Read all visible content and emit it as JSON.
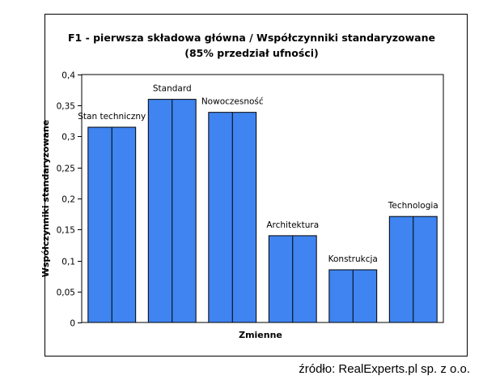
{
  "chart_data": {
    "type": "bar",
    "title": "F1 - pierwsza składowa główna / Współczynniki standaryzowane",
    "subtitle": "(85% przedział ufności)",
    "xlabel": "Zmienne",
    "ylabel": "Współczynniki standaryzowane",
    "ylim": [
      0,
      0.4
    ],
    "yticks": [
      "0",
      "0,05",
      "0,1",
      "0,15",
      "0,2",
      "0,25",
      "0,3",
      "0,35",
      "0,4"
    ],
    "categories": [
      "Stan techniczny",
      "Standard",
      "Nowoczesność",
      "Architektura",
      "Konstrukcja",
      "Technologia"
    ],
    "values": [
      0.315,
      0.36,
      0.339,
      0.14,
      0.085,
      0.171
    ],
    "grid": false,
    "legend": "none",
    "bar_color": "#3f84f0"
  },
  "footer": {
    "source": "źródło: RealExperts.pl sp. z o.o."
  }
}
